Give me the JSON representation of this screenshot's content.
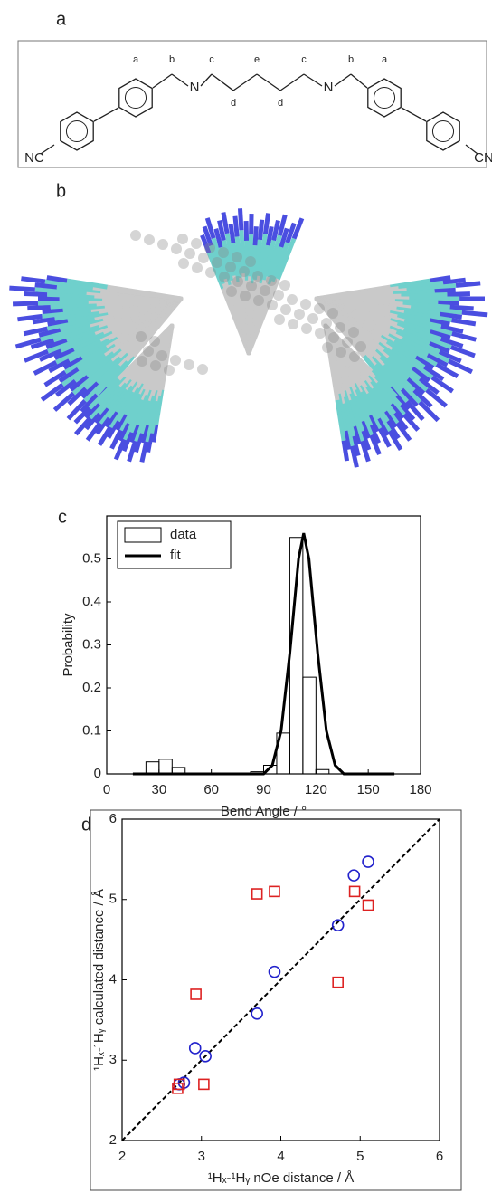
{
  "panels": {
    "a": {
      "label": "a",
      "atoms": [
        "NC",
        "N",
        "N",
        "CN"
      ],
      "positions": [
        "a",
        "b",
        "c",
        "e",
        "c",
        "b",
        "a",
        "d",
        "d"
      ]
    },
    "b": {
      "label": "b"
    },
    "c": {
      "label": "c"
    },
    "d": {
      "label": "d"
    }
  },
  "chart_data": [
    {
      "type": "histogram",
      "name": "data",
      "xlabel": "Bend Angle / °",
      "ylabel": "Probability",
      "bins": [
        22.5,
        30,
        37.5,
        45,
        52.5,
        60,
        67.5,
        75,
        82.5,
        90,
        97.5,
        105,
        112.5,
        120,
        127.5
      ],
      "values": [
        0.028,
        0.034,
        0.015,
        0,
        0,
        0,
        0,
        0,
        0.005,
        0.02,
        0.095,
        0.55,
        0.225,
        0.01
      ],
      "color": "#000000",
      "lines": [
        {
          "name": "fit",
          "color": "#000000",
          "x": [
            15,
            90,
            95,
            100,
            105,
            110,
            113,
            116,
            121,
            126,
            131,
            136,
            165
          ],
          "values": [
            0,
            0,
            0.02,
            0.1,
            0.28,
            0.5,
            0.56,
            0.5,
            0.28,
            0.1,
            0.02,
            0,
            0
          ]
        }
      ],
      "xlim": [
        0,
        180
      ],
      "xticks": [
        0,
        30,
        60,
        90,
        120,
        150,
        180
      ],
      "ylim": [
        0,
        0.6
      ],
      "yticks": [
        0,
        0.1,
        0.2,
        0.3,
        0.4,
        0.5
      ],
      "legend": "upper-left"
    },
    {
      "type": "scatter",
      "xlabel": "¹Hₓ-¹Hᵧ nOe distance / Å",
      "ylabel": "¹Hₓ-¹Hᵧ calculated distance / Å",
      "series": [
        {
          "marker": "circle",
          "color": "#2222cc",
          "x": [
            2.72,
            2.78,
            2.92,
            3.05,
            3.7,
            3.92,
            4.72,
            4.92,
            5.1
          ],
          "values": [
            2.7,
            2.72,
            3.15,
            3.05,
            3.58,
            4.1,
            4.68,
            5.3,
            5.47
          ]
        },
        {
          "marker": "square",
          "color": "#dd2222",
          "x": [
            2.7,
            2.72,
            2.93,
            3.03,
            3.7,
            3.92,
            4.72,
            4.93,
            5.1
          ],
          "values": [
            2.65,
            2.7,
            3.82,
            2.7,
            5.07,
            5.1,
            3.97,
            5.1,
            4.93
          ]
        }
      ],
      "diagonal": true,
      "xlim": [
        2,
        6
      ],
      "xticks": [
        2,
        3,
        4,
        5,
        6
      ],
      "ylim": [
        2,
        6
      ],
      "yticks": [
        2,
        3,
        4,
        5,
        6
      ]
    }
  ]
}
